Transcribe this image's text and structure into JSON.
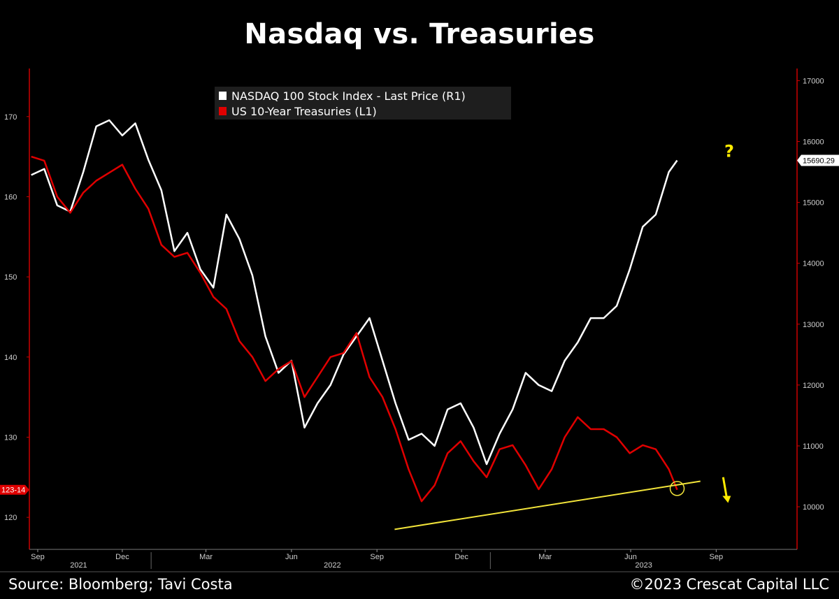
{
  "title": "Nasdaq vs. Treasuries",
  "footer": {
    "source": "Source: Bloomberg; Tavi Costa",
    "copyright": "©2023 Crescat Capital LLC"
  },
  "colors": {
    "background": "#000000",
    "nasdaq": "#ffffff",
    "treasury": "#e00000",
    "trendline": "#f2e43a",
    "annotation": "#ffeb00",
    "axis_left": "#cc0000",
    "axis_right": "#cc0000"
  },
  "chart_data": {
    "type": "line",
    "title": "Nasdaq vs. Treasuries",
    "legend": {
      "placement": "top-center",
      "entries": [
        "NASDAQ 100 Stock Index - Last Price (R1)",
        "US 10-Year Treasuries (L1)"
      ]
    },
    "x_axis": {
      "range": [
        "2021-08-23",
        "2023-11-27"
      ],
      "ticks": [
        {
          "date": "2021-09-01",
          "label": "Sep"
        },
        {
          "date": "2021-12-01",
          "label": "Dec"
        },
        {
          "date": "2022-03-01",
          "label": "Mar"
        },
        {
          "date": "2022-06-01",
          "label": "Jun"
        },
        {
          "date": "2022-09-01",
          "label": "Sep"
        },
        {
          "date": "2022-12-01",
          "label": "Dec"
        },
        {
          "date": "2023-03-01",
          "label": "Mar"
        },
        {
          "date": "2023-06-01",
          "label": "Jun"
        },
        {
          "date": "2023-09-01",
          "label": "Sep"
        }
      ],
      "years": [
        {
          "date": "2021-10-15",
          "label": "2021"
        },
        {
          "date": "2022-07-15",
          "label": "2022"
        },
        {
          "date": "2023-06-15",
          "label": "2023"
        }
      ],
      "year_dividers": [
        "2022-01-01",
        "2023-01-01"
      ]
    },
    "y_left": {
      "label": "US 10-Year Treasuries (L1)",
      "range": [
        116,
        176
      ],
      "ticks": [
        120,
        130,
        140,
        150,
        160,
        170
      ],
      "last_value_label": "123-14",
      "last_value": 123.44
    },
    "y_right": {
      "label": "NASDAQ 100 Stock Index (R1)",
      "range": [
        9300,
        17200
      ],
      "ticks": [
        10000,
        11000,
        12000,
        13000,
        14000,
        15000,
        16000,
        17000
      ],
      "last_value_label": "15690.29",
      "last_value": 15690.29
    },
    "series": [
      {
        "name": "NASDAQ 100 Stock Index - Last Price (R1)",
        "axis": "right",
        "x": [
          "2021-08-25",
          "2021-09-08",
          "2021-09-22",
          "2021-10-06",
          "2021-10-20",
          "2021-11-03",
          "2021-11-17",
          "2021-12-01",
          "2021-12-15",
          "2021-12-29",
          "2022-01-12",
          "2022-01-26",
          "2022-02-09",
          "2022-02-23",
          "2022-03-09",
          "2022-03-23",
          "2022-04-06",
          "2022-04-20",
          "2022-05-04",
          "2022-05-18",
          "2022-06-01",
          "2022-06-15",
          "2022-06-29",
          "2022-07-13",
          "2022-07-27",
          "2022-08-10",
          "2022-08-24",
          "2022-09-07",
          "2022-09-21",
          "2022-10-05",
          "2022-10-19",
          "2022-11-02",
          "2022-11-16",
          "2022-11-30",
          "2022-12-14",
          "2022-12-28",
          "2023-01-11",
          "2023-01-25",
          "2023-02-08",
          "2023-02-22",
          "2023-03-08",
          "2023-03-22",
          "2023-04-05",
          "2023-04-19",
          "2023-05-03",
          "2023-05-17",
          "2023-05-31",
          "2023-06-14",
          "2023-06-28",
          "2023-07-12",
          "2023-07-21"
        ],
        "y": [
          15450,
          15550,
          14950,
          14850,
          15500,
          16250,
          16350,
          16100,
          16300,
          15700,
          15200,
          14200,
          14500,
          13900,
          13600,
          14800,
          14400,
          13800,
          12800,
          12200,
          12400,
          11300,
          11700,
          12000,
          12500,
          12800,
          13100,
          12400,
          11700,
          11100,
          11200,
          11000,
          11600,
          11700,
          11300,
          10700,
          11200,
          11600,
          12200,
          12000,
          11900,
          12400,
          12700,
          13100,
          13100,
          13300,
          13900,
          14600,
          14800,
          15500,
          15690.29
        ]
      },
      {
        "name": "US 10-Year Treasuries (L1)",
        "axis": "left",
        "x": [
          "2021-08-25",
          "2021-09-08",
          "2021-09-22",
          "2021-10-06",
          "2021-10-20",
          "2021-11-03",
          "2021-11-17",
          "2021-12-01",
          "2021-12-15",
          "2021-12-29",
          "2022-01-12",
          "2022-01-26",
          "2022-02-09",
          "2022-02-23",
          "2022-03-09",
          "2022-03-23",
          "2022-04-06",
          "2022-04-20",
          "2022-05-04",
          "2022-05-18",
          "2022-06-01",
          "2022-06-15",
          "2022-06-29",
          "2022-07-13",
          "2022-07-27",
          "2022-08-10",
          "2022-08-24",
          "2022-09-07",
          "2022-09-21",
          "2022-10-05",
          "2022-10-19",
          "2022-11-02",
          "2022-11-16",
          "2022-11-30",
          "2022-12-14",
          "2022-12-28",
          "2023-01-11",
          "2023-01-25",
          "2023-02-08",
          "2023-02-22",
          "2023-03-08",
          "2023-03-22",
          "2023-04-05",
          "2023-04-19",
          "2023-05-03",
          "2023-05-17",
          "2023-05-31",
          "2023-06-14",
          "2023-06-28",
          "2023-07-12",
          "2023-07-21"
        ],
        "y": [
          165,
          164.5,
          160,
          158,
          160.5,
          162,
          163,
          164,
          161,
          158.5,
          154,
          152.5,
          153,
          150.5,
          147.5,
          146,
          142,
          140,
          137,
          138.5,
          139.5,
          135,
          137.5,
          140,
          140.5,
          143,
          137.5,
          135,
          131,
          126,
          122,
          124,
          128,
          129.5,
          127,
          125,
          128.5,
          129,
          126.5,
          123.5,
          126,
          130,
          132.5,
          131,
          131,
          130,
          128,
          129,
          128.5,
          126,
          123.44
        ]
      }
    ],
    "annotations": [
      {
        "type": "text",
        "text": "?"
      },
      {
        "type": "arrow",
        "direction": "down"
      },
      {
        "type": "trendline"
      },
      {
        "type": "circle"
      }
    ]
  }
}
